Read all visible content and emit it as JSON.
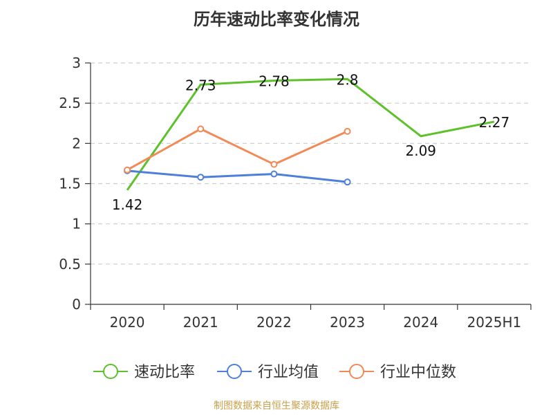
{
  "title": "历年速动比率变化情况",
  "source": "制图数据来自恒生聚源数据库",
  "chart_data": {
    "type": "line",
    "title": "历年速动比率变化情况",
    "categories": [
      "2020",
      "2021",
      "2022",
      "2023",
      "2024",
      "2025H1"
    ],
    "ylim": [
      0,
      3
    ],
    "yticks": [
      "0",
      "0.5",
      "1",
      "1.5",
      "2",
      "2.5",
      "3"
    ],
    "grid": true,
    "legend_position": "bottom",
    "series": [
      {
        "name": "速动比率",
        "color": "#5cc12a",
        "values": [
          1.42,
          2.73,
          2.78,
          2.8,
          2.09,
          2.27
        ],
        "labels": [
          "1.42",
          "2.73",
          "2.78",
          "2.8",
          "2.09",
          "2.27"
        ],
        "show_markers": false
      },
      {
        "name": "行业均值",
        "color": "#4e7fd9",
        "values": [
          1.66,
          1.58,
          1.62,
          1.52,
          null,
          null
        ],
        "show_markers": true
      },
      {
        "name": "行业中位数",
        "color": "#f28a57",
        "values": [
          1.67,
          2.18,
          1.74,
          2.15,
          null,
          null
        ],
        "show_markers": true
      }
    ]
  }
}
